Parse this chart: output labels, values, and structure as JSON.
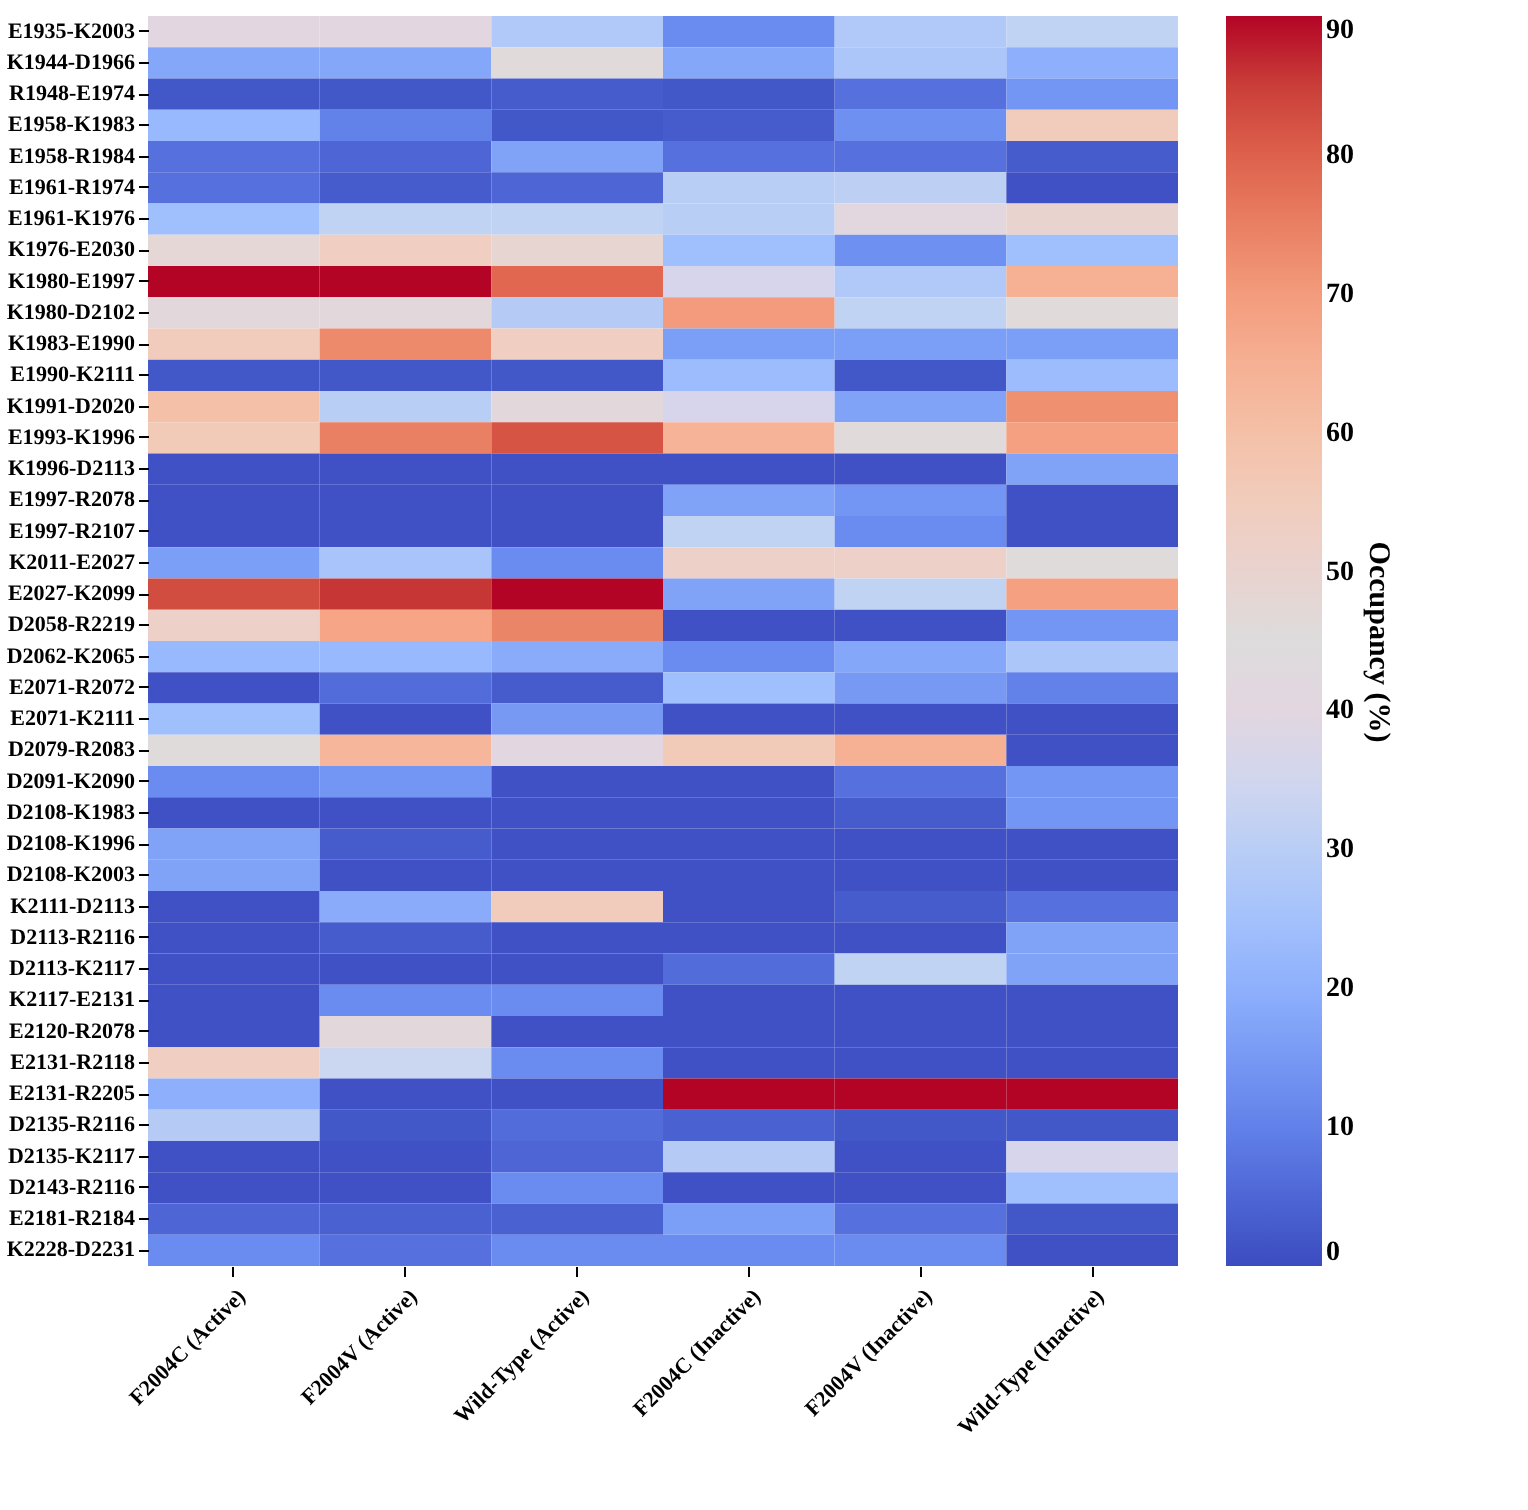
{
  "chart_data": {
    "type": "heatmap",
    "clabel": "Occupancy (%)",
    "categories": [
      "F2004C (Active)",
      "F2004V (Active)",
      "Wild-Type (Active)",
      "F2004C (Inactive)",
      "F2004V (Inactive)",
      "Wild-Type (Inactive)"
    ],
    "y_categories": [
      "E1935-K2003",
      "K1944-D1966",
      "R1948-E1974",
      "E1958-K1983",
      "E1958-R1984",
      "E1961-R1974",
      "E1961-K1976",
      "K1976-E2030",
      "K1980-E1997",
      "K1980-D2102",
      "K1983-E1990",
      "E1990-K2111",
      "K1991-D2020",
      "E1993-K1996",
      "K1996-D2113",
      "E1997-R2078",
      "E1997-R2107",
      "K2011-E2027",
      "E2027-K2099",
      "D2058-R2219",
      "D2062-K2065",
      "E2071-R2072",
      "E2071-K2111",
      "D2079-R2083",
      "D2091-K2090",
      "D2108-K1983",
      "D2108-K1996",
      "D2108-K2003",
      "K2111-D2113",
      "D2113-R2116",
      "D2113-K2117",
      "K2117-E2131",
      "E2120-R2078",
      "E2131-R2118",
      "E2131-R2205",
      "D2135-R2116",
      "D2135-K2117",
      "D2143-R2116",
      "E2181-R2184",
      "K2228-D2231"
    ],
    "cells": [
      [
        40,
        40,
        28,
        12,
        28,
        32
      ],
      [
        18,
        18,
        46,
        18,
        27,
        20
      ],
      [
        2,
        2,
        3,
        2,
        7,
        14
      ],
      [
        22,
        10,
        2,
        3,
        13,
        55
      ],
      [
        7,
        5,
        17,
        7,
        7,
        3
      ],
      [
        7,
        3,
        5,
        30,
        31,
        1
      ],
      [
        24,
        32,
        32,
        30,
        41,
        50
      ],
      [
        48,
        54,
        49,
        24,
        13,
        24
      ],
      [
        90,
        90,
        79,
        36,
        28,
        65
      ],
      [
        42,
        42,
        29,
        70,
        32,
        46
      ],
      [
        55,
        73,
        54,
        16,
        16,
        16
      ],
      [
        2,
        2,
        2,
        23,
        2,
        23
      ],
      [
        60,
        30,
        42,
        36,
        17,
        72
      ],
      [
        56,
        75,
        82,
        64,
        46,
        69
      ],
      [
        1,
        1,
        1,
        1,
        1,
        17
      ],
      [
        1,
        1,
        1,
        17,
        14,
        1
      ],
      [
        1,
        1,
        1,
        32,
        12,
        1
      ],
      [
        16,
        26,
        12,
        52,
        52,
        44
      ],
      [
        83,
        86,
        90,
        17,
        32,
        69
      ],
      [
        52,
        68,
        74,
        1,
        1,
        14
      ],
      [
        22,
        22,
        19,
        12,
        18,
        27
      ],
      [
        1,
        6,
        3,
        24,
        15,
        10
      ],
      [
        24,
        1,
        15,
        1,
        1,
        1
      ],
      [
        44,
        63,
        40,
        56,
        65,
        1
      ],
      [
        12,
        14,
        1,
        1,
        7,
        14
      ],
      [
        1,
        1,
        1,
        1,
        3,
        14
      ],
      [
        17,
        3,
        1,
        1,
        1,
        1
      ],
      [
        17,
        1,
        1,
        1,
        1,
        1
      ],
      [
        1,
        19,
        55,
        1,
        3,
        7
      ],
      [
        1,
        3,
        1,
        1,
        1,
        17
      ],
      [
        1,
        1,
        1,
        6,
        32,
        17
      ],
      [
        1,
        12,
        12,
        1,
        1,
        1
      ],
      [
        1,
        42,
        1,
        1,
        1,
        1
      ],
      [
        54,
        34,
        12,
        1,
        1,
        1
      ],
      [
        20,
        1,
        1,
        90,
        90,
        90
      ],
      [
        29,
        2,
        6,
        4,
        2,
        2
      ],
      [
        1,
        1,
        5,
        29,
        1,
        36
      ],
      [
        1,
        1,
        12,
        1,
        1,
        24
      ],
      [
        5,
        4,
        4,
        16,
        7,
        2
      ],
      [
        12,
        7,
        12,
        12,
        12,
        1
      ]
    ],
    "clim": [
      0,
      90
    ],
    "cticks": [
      0,
      10,
      20,
      30,
      40,
      50,
      60,
      70,
      80,
      90
    ]
  }
}
